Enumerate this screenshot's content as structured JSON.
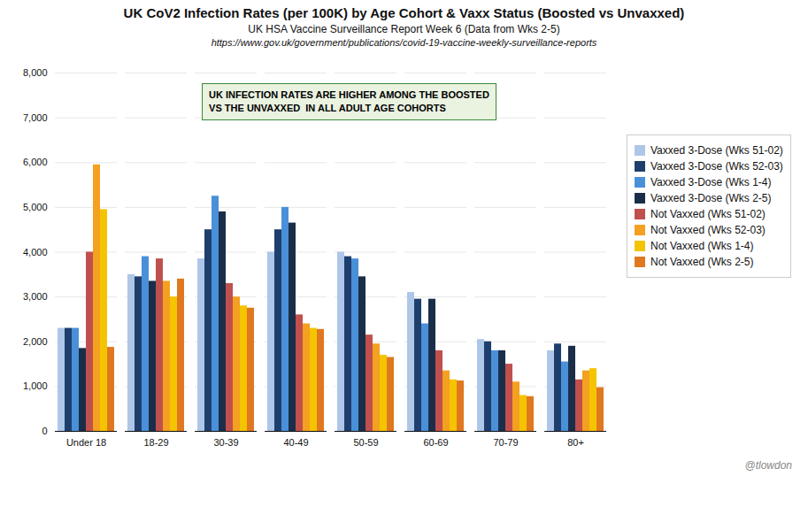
{
  "chart_data": {
    "type": "bar",
    "title": "UK CoV2 Infection Rates (per 100K) by Age Cohort & Vaxx Status (Boosted vs Unvaxxed)",
    "subtitle": "UK HSA Vaccine Surveillance Report Week 6 (Data from Wks 2-5)",
    "source": "https://www.gov.uk/government/publications/covid-19-vaccine-weekly-surveillance-reports",
    "categories": [
      "Under 18",
      "18-29",
      "30-39",
      "40-49",
      "50-59",
      "60-69",
      "70-79",
      "80+"
    ],
    "series": [
      {
        "name": "Vaxxed 3-Dose (Wks 51-02)",
        "color": "#aec6e8",
        "values": [
          2300,
          3500,
          3850,
          4000,
          4000,
          3100,
          2050,
          1800
        ]
      },
      {
        "name": "Vaxxed 3-Dose (Wks 52-03)",
        "color": "#1e3f6e",
        "values": [
          2300,
          3450,
          4500,
          4500,
          3900,
          2950,
          2000,
          1950
        ]
      },
      {
        "name": "Vaxxed 3-Dose (Wks 1-4)",
        "color": "#4a90d9",
        "values": [
          2300,
          3900,
          5250,
          5000,
          3850,
          2400,
          1800,
          1550
        ]
      },
      {
        "name": "Vaxxed 3-Dose (Wks 2-5)",
        "color": "#1a2e4a",
        "values": [
          1850,
          3350,
          4900,
          4650,
          3450,
          2950,
          1800,
          1900
        ]
      },
      {
        "name": "Not Vaxxed (Wks 51-02)",
        "color": "#c0504d",
        "values": [
          4000,
          3850,
          3300,
          2600,
          2150,
          1800,
          1500,
          1150
        ]
      },
      {
        "name": "Not Vaxxed (Wks 52-03)",
        "color": "#f4a020",
        "values": [
          5950,
          3350,
          3000,
          2400,
          1950,
          1350,
          1100,
          1350
        ]
      },
      {
        "name": "Not Vaxxed (Wks 1-4)",
        "color": "#f5c400",
        "values": [
          4950,
          3000,
          2800,
          2300,
          1700,
          1150,
          800,
          1400
        ]
      },
      {
        "name": "Not Vaxxed (Wks 2-5)",
        "color": "#e07820",
        "values": [
          1875,
          3400,
          2750,
          2275,
          1650,
          1125,
          775,
          975
        ]
      }
    ],
    "ylim": [
      0,
      8000
    ],
    "yticks": [
      0,
      1000,
      2000,
      3000,
      4000,
      5000,
      6000,
      7000,
      8000
    ],
    "grid": true,
    "legend": "right",
    "annotation": "UK INFECTION RATES ARE HIGHER AMONG THE BOOSTED\nVS THE UNVAXXED  IN ALL ADULT AGE COHORTS",
    "watermark": "@tlowdon"
  }
}
